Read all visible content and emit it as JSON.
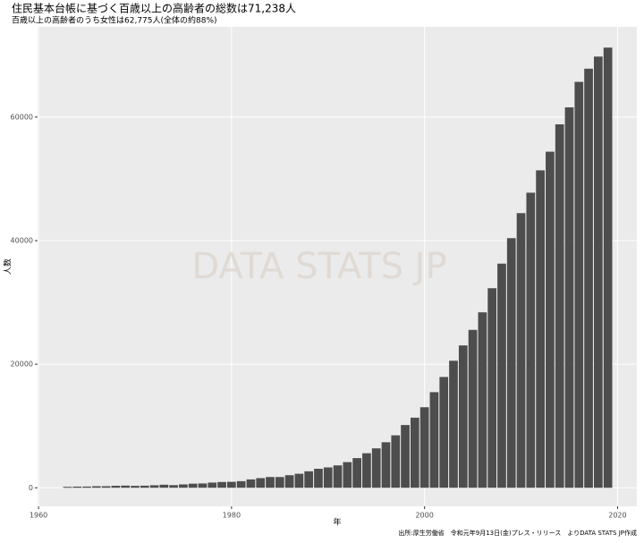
{
  "chart_data": {
    "type": "bar",
    "title": "住民基本台帳に基づく百歳以上の高齢者の総数は71,238人",
    "subtitle": "百歳以上の高齢者のうち女性は62,775人(全体の約88%)",
    "x_label": "年",
    "y_label": "人数",
    "watermark": "DATA STATS JP",
    "caption": "出所:厚生労働省　令和元年9月13日(金)プレス・リリース　よりDATA STATS JP作成",
    "x": [
      1963,
      1964,
      1965,
      1966,
      1967,
      1968,
      1969,
      1970,
      1971,
      1972,
      1973,
      1974,
      1975,
      1976,
      1977,
      1978,
      1979,
      1980,
      1981,
      1982,
      1983,
      1984,
      1985,
      1986,
      1987,
      1988,
      1989,
      1990,
      1991,
      1992,
      1993,
      1994,
      1995,
      1996,
      1997,
      1998,
      1999,
      2000,
      2001,
      2002,
      2003,
      2004,
      2005,
      2006,
      2007,
      2008,
      2009,
      2010,
      2011,
      2012,
      2013,
      2014,
      2015,
      2016,
      2017,
      2018,
      2019
    ],
    "values": [
      153,
      191,
      198,
      252,
      255,
      327,
      352,
      310,
      339,
      405,
      495,
      427,
      548,
      666,
      700,
      841,
      937,
      968,
      1072,
      1354,
      1561,
      1740,
      1740,
      2035,
      2271,
      2668,
      3078,
      3298,
      3625,
      4152,
      4802,
      5593,
      6378,
      7373,
      8491,
      10158,
      11346,
      13036,
      15475,
      17934,
      20561,
      23038,
      25554,
      28395,
      32295,
      36276,
      40399,
      44449,
      47756,
      51376,
      54397,
      58820,
      61568,
      65692,
      67824,
      69785,
      71238
    ],
    "color": "#4d4d4d",
    "xlim": [
      1959.9,
      2022
    ],
    "xticks": [
      1960,
      1980,
      2000,
      2020
    ],
    "ylim": [
      -3000,
      74600
    ],
    "yticks": [
      0,
      20000,
      40000,
      60000
    ],
    "grid": true
  }
}
